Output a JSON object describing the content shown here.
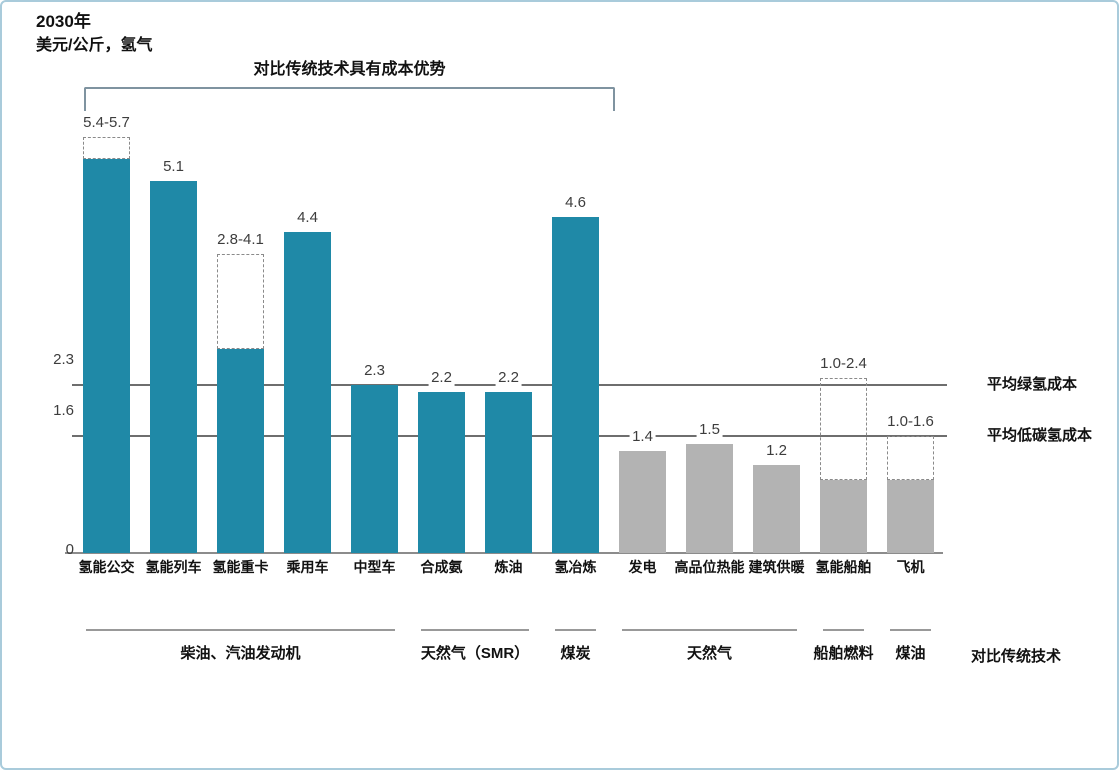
{
  "header": {
    "year": "2030年",
    "unit": "美元/公斤，氢气"
  },
  "annotation": {
    "bracket_label": "对比传统技术具有成本优势"
  },
  "footer": {
    "comparison_label": "对比传统技术"
  },
  "colors": {
    "teal": "#1f89a7",
    "gray": "#b3b3b3",
    "frame_border": "#a9cbdb",
    "ref_line": "#6e6e6e",
    "axis_line": "#8c8c8c",
    "group_line": "#999999",
    "bracket": "#7f93a0",
    "value_text": "#3d3d3d",
    "dash_border": "#8a8a8a"
  },
  "chart_data": {
    "type": "bar",
    "title": "2030年 美元/公斤，氢气",
    "ylabel": "美元/公斤，氢气",
    "ylim": [
      0,
      6
    ],
    "grid": false,
    "yticks": [
      {
        "label": "2.3",
        "value": 2.3
      },
      {
        "label": "1.6",
        "value": 1.6
      },
      {
        "label": "0",
        "value": 0
      }
    ],
    "reference_lines": [
      {
        "value": 2.3,
        "label": "平均绿氢成本"
      },
      {
        "value": 1.6,
        "label": "平均低碳氢成本"
      }
    ],
    "bars": [
      {
        "category": "氢能公交",
        "value": 5.4,
        "high": 5.7,
        "label": "5.4-5.7",
        "color": "teal"
      },
      {
        "category": "氢能列车",
        "value": 5.1,
        "label": "5.1",
        "color": "teal"
      },
      {
        "category": "氢能重卡",
        "value": 2.8,
        "high": 4.1,
        "label": "2.8-4.1",
        "color": "teal"
      },
      {
        "category": "乘用车",
        "value": 4.4,
        "label": "4.4",
        "color": "teal"
      },
      {
        "category": "中型车",
        "value": 2.3,
        "label": "2.3",
        "color": "teal"
      },
      {
        "category": "合成氨",
        "value": 2.2,
        "label": "2.2",
        "color": "teal"
      },
      {
        "category": "炼油",
        "value": 2.2,
        "label": "2.2",
        "color": "teal"
      },
      {
        "category": "氢冶炼",
        "value": 4.6,
        "label": "4.6",
        "color": "teal"
      },
      {
        "category": "发电",
        "value": 1.4,
        "label": "1.4",
        "color": "gray"
      },
      {
        "category": "高品位热能",
        "value": 1.5,
        "label": "1.5",
        "color": "gray"
      },
      {
        "category": "建筑供暖",
        "value": 1.2,
        "label": "1.2",
        "color": "gray"
      },
      {
        "category": "氢能船舶",
        "value": 1.0,
        "high": 2.4,
        "label": "1.0-2.4",
        "color": "gray"
      },
      {
        "category": "飞机",
        "value": 1.0,
        "high": 1.6,
        "label": "1.0-1.6",
        "color": "gray"
      }
    ],
    "groups": [
      {
        "label": "柴油、汽油发动机",
        "from": 0,
        "to": 4
      },
      {
        "label": "天然气（SMR）",
        "from": 5,
        "to": 6
      },
      {
        "label": "煤炭",
        "from": 7,
        "to": 7
      },
      {
        "label": "天然气",
        "from": 8,
        "to": 10
      },
      {
        "label": "船舶燃料",
        "from": 11,
        "to": 11
      },
      {
        "label": "煤油",
        "from": 12,
        "to": 12
      }
    ],
    "bracket_span": {
      "from": 0,
      "to": 7,
      "label": "对比传统技术具有成本优势"
    },
    "legend_position": "none"
  }
}
